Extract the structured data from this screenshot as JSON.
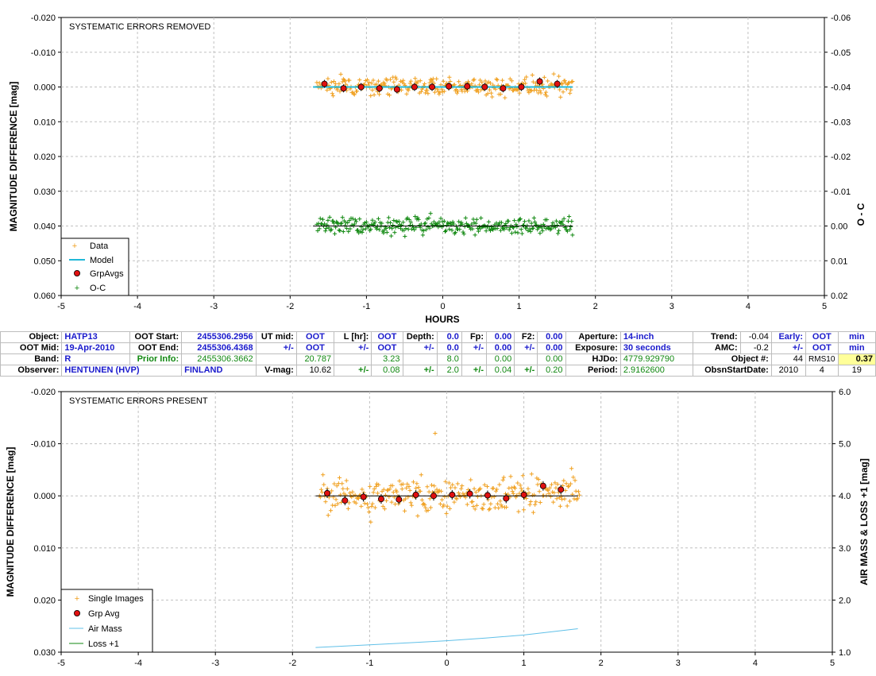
{
  "colors": {
    "data": "#f0a020",
    "model": "#20b8d8",
    "grp": "#e01010",
    "oc": "#108810",
    "airmass": "#60c0e8",
    "loss": "#108810"
  },
  "top_chart": {
    "title": "SYSTEMATIC ERRORS REMOVED",
    "ylabel_left": "MAGNITUDE DIFFERENCE [mag]",
    "ylabel_right": "O - C",
    "xlabel": "HOURS",
    "xticks": [
      "-5",
      "-4",
      "-3",
      "-2",
      "-1",
      "0",
      "1",
      "2",
      "3",
      "4",
      "5"
    ],
    "yticks_left": [
      "-0.020",
      "-0.010",
      "0.000",
      "0.010",
      "0.020",
      "0.030",
      "0.040",
      "0.050",
      "0.060"
    ],
    "yticks_right": [
      "-0.06",
      "-0.05",
      "-0.04",
      "-0.03",
      "-0.02",
      "-0.01",
      "0.00",
      "0.01",
      "0.02"
    ],
    "legend": [
      "Data",
      "Model",
      "GrpAvgs",
      "O-C"
    ]
  },
  "bottom_chart": {
    "title": "SYSTEMATIC ERRORS PRESENT",
    "ylabel_left": "MAGNITUDE DIFFERENCE [mag]",
    "ylabel_right": "AIR MASS & LOSS +1 [mag]",
    "xticks": [
      "-5",
      "-4",
      "-3",
      "-2",
      "-1",
      "0",
      "1",
      "2",
      "3",
      "4",
      "5"
    ],
    "yticks_left": [
      "-0.020",
      "-0.010",
      "0.000",
      "0.010",
      "0.020",
      "0.030"
    ],
    "yticks_right": [
      "6.0",
      "5.0",
      "4.0",
      "3.0",
      "2.0",
      "1.0"
    ],
    "legend": [
      "Single Images",
      "Grp Avg",
      "Air Mass",
      "Loss +1"
    ]
  },
  "chart_data": [
    {
      "type": "scatter",
      "title": "SYSTEMATIC ERRORS REMOVED",
      "xlabel": "HOURS",
      "ylabel": "MAGNITUDE DIFFERENCE [mag]",
      "y2label": "O - C",
      "xlim": [
        -5,
        5
      ],
      "ylim": [
        -0.02,
        0.06
      ],
      "y_inverted": true,
      "y2lim": [
        -0.06,
        0.02
      ],
      "grid": true,
      "legend_position": "bottom-left",
      "series": [
        {
          "name": "Model",
          "x": [
            -1.7,
            1.7
          ],
          "y": [
            0.0,
            0.0
          ]
        },
        {
          "name": "GrpAvgs",
          "x": [
            -1.55,
            -1.3,
            -1.07,
            -0.83,
            -0.6,
            -0.37,
            -0.14,
            0.08,
            0.32,
            0.55,
            0.79,
            1.03,
            1.27,
            1.5
          ],
          "y": [
            -0.0009,
            0.0004,
            0.0,
            0.0004,
            0.0007,
            0.0,
            0.0,
            -0.0002,
            -0.0002,
            0.0,
            0.0004,
            0.0,
            -0.0016,
            -0.0009
          ]
        },
        {
          "name": "O-C",
          "x": [
            -1.7,
            1.7
          ],
          "y": [
            0.0,
            0.0
          ]
        }
      ],
      "data_cloud": {
        "name": "Data",
        "n": 300,
        "x_range": [
          -1.65,
          1.7
        ],
        "y_center": 0.0,
        "y_spread": 0.0025
      },
      "oc_cloud": {
        "name": "O-C",
        "n": 300,
        "x_range": [
          -1.65,
          1.7
        ],
        "y_center_mag": 0.04,
        "y_spread": 0.0025
      }
    },
    {
      "type": "scatter",
      "title": "SYSTEMATIC ERRORS PRESENT",
      "ylabel": "MAGNITUDE DIFFERENCE [mag]",
      "y2label": "AIR MASS & LOSS +1 [mag]",
      "xlim": [
        -5,
        5
      ],
      "ylim": [
        -0.02,
        0.03
      ],
      "y_inverted": true,
      "y2lim": [
        1.0,
        6.0
      ],
      "grid": true,
      "legend_position": "bottom-left",
      "series": [
        {
          "name": "Grp Avg",
          "x": [
            -1.55,
            -1.32,
            -1.08,
            -0.85,
            -0.62,
            -0.4,
            -0.17,
            0.07,
            0.3,
            0.53,
            0.77,
            1.0,
            1.25,
            1.48
          ],
          "y": [
            -0.0005,
            0.0009,
            0.0002,
            0.0006,
            0.0007,
            -0.0002,
            0.0,
            -0.0002,
            -0.0004,
            -0.0001,
            0.0005,
            -0.0002,
            -0.0019,
            -0.0012
          ]
        },
        {
          "name": "Air Mass",
          "x": [
            -1.7,
            -1.0,
            -0.5,
            0.0,
            0.5,
            1.0,
            1.7
          ],
          "y2": [
            1.09,
            1.14,
            1.18,
            1.22,
            1.27,
            1.33,
            1.45
          ]
        },
        {
          "name": "Loss +1",
          "x": [],
          "y2": []
        }
      ],
      "data_cloud": {
        "name": "Single Images",
        "n": 300,
        "x_range": [
          -1.65,
          1.72
        ],
        "y_center": 0.0,
        "y_spread": 0.0032,
        "outlier": [
          -0.15,
          -0.012
        ]
      }
    }
  ],
  "info_table": {
    "r1": {
      "obj_lbl": "Object:",
      "obj": "HATP13",
      "ootstart_lbl": "OOT Start:",
      "ootstart": "2455306.2956",
      "utmid_lbl": "UT mid:",
      "utmid": "OOT",
      "lhr_lbl": "L [hr]:",
      "lhr": "OOT",
      "depth_lbl": "Depth:",
      "depth": "0.0",
      "fp_lbl": "Fp:",
      "fp": "0.00",
      "f2_lbl": "F2:",
      "f2": "0.00",
      "ap_lbl": "Aperture:",
      "ap": "14-inch",
      "trend_lbl": "Trend:",
      "trend": "-0.04",
      "early_lbl": "Early:",
      "early": "OOT",
      "unit": "min"
    },
    "r2": {
      "ootmid_lbl": "OOT Mid:",
      "ootmid": "19-Apr-2010",
      "ootend_lbl": "OOT End:",
      "ootend": "2455306.4368",
      "pm1": "+/-",
      "v1": "OOT",
      "pm2": "+/-",
      "v2": "OOT",
      "pm3": "+/-",
      "v3": "0.0",
      "pm4": "+/-",
      "v4": "0.00",
      "pm5": "+/-",
      "v5": "0.00",
      "exp_lbl": "Exposure:",
      "exp": "30 seconds",
      "amc_lbl": "AMC:",
      "amc": "-0.2",
      "pm6": "+/-",
      "v6": "OOT",
      "unit": "min"
    },
    "r3": {
      "band_lbl": "Band:",
      "band": "R",
      "prior_lbl": "Prior Info:",
      "prior": "2455306.3662",
      "a": "20.787",
      "b": "3.23",
      "c": "8.0",
      "d": "0.00",
      "e": "0.00",
      "hjdo_lbl": "HJDo:",
      "hjdo": "4779.929790",
      "objn_lbl": "Object #:",
      "objn": "44",
      "rms_lbl": "RMS10",
      "rms": "0.37"
    },
    "r4": {
      "obs_lbl": "Observer:",
      "obs": "HENTUNEN (HVP)",
      "country": "FINLAND",
      "vmag_lbl": "V-mag:",
      "vmag": "10.62",
      "pm1": "+/-",
      "v1": "0.08",
      "pm2": "+/-",
      "v2": "2.0",
      "pm3": "+/-",
      "v3": "0.04",
      "pm4": "+/-",
      "v4": "0.20",
      "per_lbl": "Period:",
      "per": "2.9162600",
      "oss_lbl": "ObsnStartDate:",
      "y": "2010",
      "m": "4",
      "d": "19"
    }
  }
}
